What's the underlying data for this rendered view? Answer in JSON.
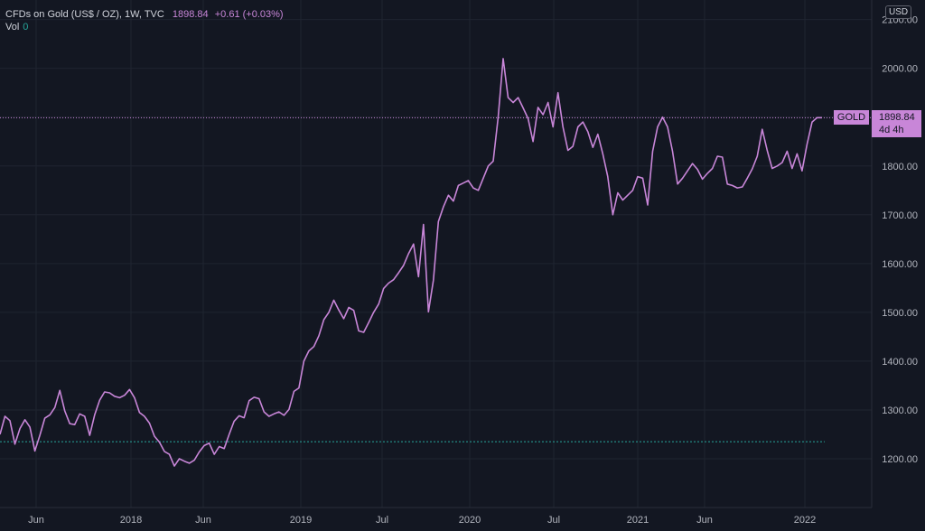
{
  "header": {
    "symbol": "CFDs on Gold (US$ / OZ), 1W, TVC",
    "price": "1898.84",
    "change": "+0.61 (+0.03%)",
    "vol_label": "Vol",
    "vol_value": "0"
  },
  "currency": "USD",
  "tag": {
    "name": "GOLD",
    "price": "1898.84",
    "countdown": "4d 4h"
  },
  "colors": {
    "background": "#131722",
    "line": "#c886d8",
    "grid": "#1f2430",
    "baseline": "#26a69a"
  },
  "chart_data": {
    "type": "line",
    "series": [
      {
        "values": [
          1250,
          1287,
          1278,
          1230,
          1262,
          1280,
          1265,
          1216,
          1248,
          1283,
          1290,
          1305,
          1340,
          1298,
          1272,
          1270,
          1292,
          1287,
          1248,
          1290,
          1320,
          1337,
          1335,
          1328,
          1325,
          1330,
          1342,
          1325,
          1295,
          1287,
          1273,
          1246,
          1234,
          1215,
          1209,
          1185,
          1200,
          1195,
          1191,
          1197,
          1214,
          1227,
          1232,
          1209,
          1225,
          1221,
          1250,
          1277,
          1288,
          1284,
          1319,
          1326,
          1323,
          1296,
          1287,
          1292,
          1296,
          1289,
          1301,
          1338,
          1345,
          1400,
          1421,
          1430,
          1452,
          1485,
          1500,
          1525,
          1505,
          1487,
          1510,
          1504,
          1462,
          1459,
          1479,
          1500,
          1517,
          1549,
          1560,
          1567,
          1581,
          1596,
          1620,
          1640,
          1573,
          1680,
          1501,
          1566,
          1686,
          1716,
          1740,
          1728,
          1760,
          1765,
          1770,
          1755,
          1750,
          1775,
          1800,
          1810,
          1900,
          2020,
          1940,
          1930,
          1940,
          1919,
          1897,
          1850,
          1920,
          1905,
          1930,
          1880,
          1950,
          1880,
          1832,
          1840,
          1880,
          1890,
          1870,
          1838,
          1865,
          1825,
          1778,
          1700,
          1745,
          1730,
          1740,
          1750,
          1778,
          1775,
          1720,
          1830,
          1880,
          1900,
          1880,
          1830,
          1763,
          1775,
          1790,
          1805,
          1793,
          1773,
          1785,
          1795,
          1820,
          1818,
          1763,
          1760,
          1755,
          1757,
          1775,
          1794,
          1820,
          1875,
          1832,
          1795,
          1800,
          1807,
          1830,
          1795,
          1825,
          1790,
          1845,
          1890,
          1899,
          1898.84
        ]
      }
    ],
    "x_ticks": [
      "Jun",
      "2018",
      "Jun",
      "2019",
      "Jul",
      "2020",
      "Jul",
      "2021",
      "Jun",
      "2022"
    ],
    "y_ticks": [
      "1200.00",
      "1300.00",
      "1400.00",
      "1500.00",
      "1600.00",
      "1700.00",
      "1800.00",
      "1900.00",
      "2000.00",
      "2100.00"
    ],
    "last_price": 1898.84,
    "baseline": 1235,
    "ylim": [
      1100,
      2150
    ]
  }
}
